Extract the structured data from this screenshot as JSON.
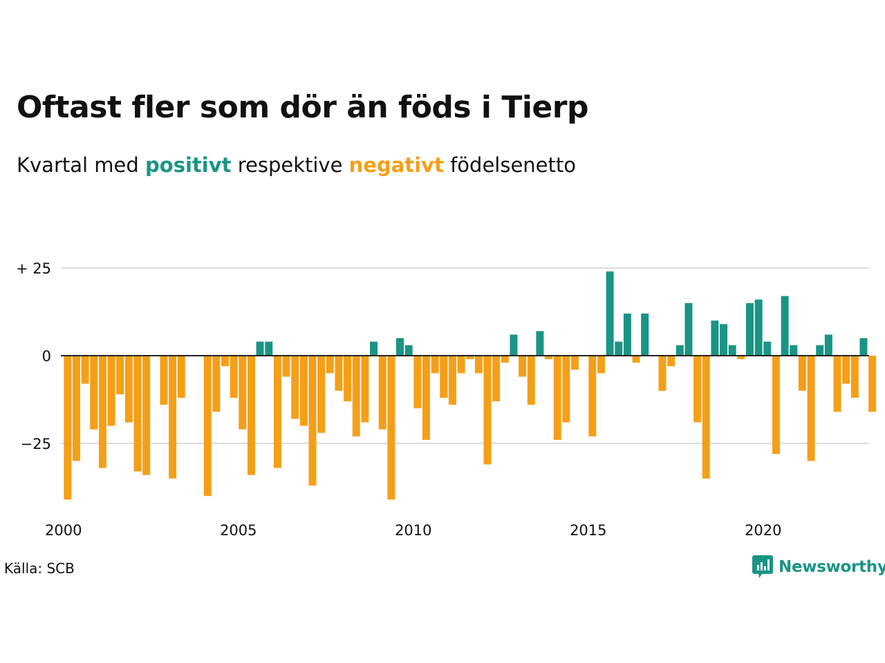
{
  "title": "Oftast fler som dör än föds i Tierp",
  "subtitle": {
    "before": "Kvartal med ",
    "positive": "positivt",
    "middle": " respektive ",
    "negative": "negativt",
    "after": " födelsenetto"
  },
  "source": "Källa: SCB",
  "brand": "Newsworthy",
  "colors": {
    "positive": "#1a9485",
    "negative": "#f59f18",
    "grid": "#dddddd",
    "text": "#111111"
  },
  "chart_data": {
    "type": "bar",
    "ylim": [
      -43,
      29
    ],
    "yticks": [
      25,
      0,
      -25
    ],
    "ytick_labels": [
      "+ 25",
      "0",
      "−25"
    ],
    "xticks": [
      "2000",
      "2005",
      "2010",
      "2015",
      "2020"
    ],
    "grid": true,
    "start_year": 2000,
    "values": [
      -41,
      -30,
      -8,
      -21,
      -32,
      -20,
      -11,
      -19,
      -33,
      -34,
      0,
      -14,
      -35,
      -12,
      0,
      0,
      -40,
      -16,
      -3,
      -12,
      -21,
      -34,
      4,
      4,
      -32,
      -6,
      -18,
      -20,
      -37,
      -22,
      -5,
      -10,
      -13,
      -23,
      -19,
      4,
      -21,
      -41,
      5,
      3,
      -15,
      -24,
      -5,
      -12,
      -14,
      -5,
      -1,
      -5,
      -31,
      -13,
      -2,
      6,
      -6,
      -14,
      7,
      -1,
      -24,
      -19,
      -4,
      0,
      -23,
      -5,
      24,
      4,
      12,
      -2,
      12,
      0,
      -10,
      -3,
      3,
      15,
      -19,
      -35,
      10,
      9,
      3,
      -1,
      15,
      16,
      4,
      -28,
      17,
      3,
      -10,
      -30,
      3,
      6,
      -16,
      -8,
      -12,
      5,
      -16
    ]
  }
}
